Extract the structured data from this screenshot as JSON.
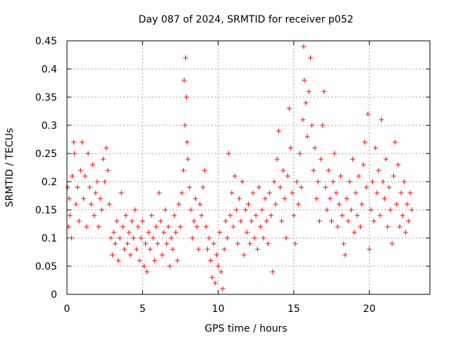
{
  "chart_data": {
    "type": "scatter",
    "title": "Day 087 of 2024, SRMTID for receiver p052",
    "xlabel": "GPS time / hours",
    "ylabel": "SRMTID / TECUs",
    "xlim": [
      0,
      24
    ],
    "ylim": [
      0,
      0.45
    ],
    "x_ticks": [
      0,
      5,
      10,
      15,
      20
    ],
    "x_tick_labels": [
      "0",
      "5",
      "10",
      "15",
      "20"
    ],
    "y_ticks": [
      0,
      0.05,
      0.1,
      0.15,
      0.2,
      0.25,
      0.3,
      0.35,
      0.4,
      0.45
    ],
    "y_tick_labels": [
      "0",
      "0.05",
      "0.1",
      "0.15",
      "0.2",
      "0.25",
      "0.3",
      "0.35",
      "0.4",
      "0.45"
    ],
    "grid": true,
    "marker": "+",
    "color": "#ff0000",
    "series": [
      {
        "name": "SRMTID",
        "points": [
          [
            0.05,
            0.19
          ],
          [
            0.1,
            0.12
          ],
          [
            0.15,
            0.17
          ],
          [
            0.2,
            0.14
          ],
          [
            0.3,
            0.1
          ],
          [
            0.35,
            0.21
          ],
          [
            0.45,
            0.27
          ],
          [
            0.5,
            0.25
          ],
          [
            0.6,
            0.16
          ],
          [
            0.7,
            0.19
          ],
          [
            0.8,
            0.13
          ],
          [
            0.9,
            0.22
          ],
          [
            1.0,
            0.27
          ],
          [
            1.1,
            0.17
          ],
          [
            1.2,
            0.21
          ],
          [
            1.3,
            0.12
          ],
          [
            1.4,
            0.25
          ],
          [
            1.5,
            0.19
          ],
          [
            1.6,
            0.16
          ],
          [
            1.7,
            0.23
          ],
          [
            1.8,
            0.14
          ],
          [
            1.9,
            0.18
          ],
          [
            2.0,
            0.2
          ],
          [
            2.1,
            0.12
          ],
          [
            2.2,
            0.17
          ],
          [
            2.3,
            0.15
          ],
          [
            2.4,
            0.24
          ],
          [
            2.5,
            0.2
          ],
          [
            2.6,
            0.26
          ],
          [
            2.7,
            0.22
          ],
          [
            2.8,
            0.16
          ],
          [
            2.9,
            0.1
          ],
          [
            3.0,
            0.07
          ],
          [
            3.1,
            0.11
          ],
          [
            3.2,
            0.09
          ],
          [
            3.3,
            0.13
          ],
          [
            3.4,
            0.06
          ],
          [
            3.5,
            0.1
          ],
          [
            3.6,
            0.18
          ],
          [
            3.7,
            0.12
          ],
          [
            3.8,
            0.08
          ],
          [
            3.9,
            0.14
          ],
          [
            4.0,
            0.09
          ],
          [
            4.1,
            0.11
          ],
          [
            4.2,
            0.07
          ],
          [
            4.3,
            0.13
          ],
          [
            4.4,
            0.1
          ],
          [
            4.5,
            0.15
          ],
          [
            4.6,
            0.08
          ],
          [
            4.7,
            0.12
          ],
          [
            4.8,
            0.06
          ],
          [
            4.9,
            0.1
          ],
          [
            5.0,
            0.13
          ],
          [
            5.1,
            0.05
          ],
          [
            5.2,
            0.09
          ],
          [
            5.3,
            0.04
          ],
          [
            5.4,
            0.11
          ],
          [
            5.5,
            0.08
          ],
          [
            5.6,
            0.14
          ],
          [
            5.7,
            0.1
          ],
          [
            5.8,
            0.06
          ],
          [
            5.9,
            0.12
          ],
          [
            6.0,
            0.09
          ],
          [
            6.1,
            0.18
          ],
          [
            6.2,
            0.13
          ],
          [
            6.3,
            0.07
          ],
          [
            6.4,
            0.11
          ],
          [
            6.5,
            0.15
          ],
          [
            6.6,
            0.09
          ],
          [
            6.7,
            0.12
          ],
          [
            6.8,
            0.05
          ],
          [
            6.9,
            0.1
          ],
          [
            7.0,
            0.08
          ],
          [
            7.1,
            0.14
          ],
          [
            7.2,
            0.11
          ],
          [
            7.3,
            0.06
          ],
          [
            7.4,
            0.16
          ],
          [
            7.5,
            0.12
          ],
          [
            7.6,
            0.18
          ],
          [
            7.7,
            0.22
          ],
          [
            7.75,
            0.38
          ],
          [
            7.8,
            0.3
          ],
          [
            7.85,
            0.42
          ],
          [
            7.9,
            0.35
          ],
          [
            7.95,
            0.27
          ],
          [
            8.0,
            0.24
          ],
          [
            8.1,
            0.19
          ],
          [
            8.2,
            0.15
          ],
          [
            8.3,
            0.1
          ],
          [
            8.4,
            0.13
          ],
          [
            8.5,
            0.17
          ],
          [
            8.6,
            0.12
          ],
          [
            8.7,
            0.08
          ],
          [
            8.8,
            0.16
          ],
          [
            8.9,
            0.14
          ],
          [
            9.0,
            0.19
          ],
          [
            9.1,
            0.22
          ],
          [
            9.2,
            0.12
          ],
          [
            9.3,
            0.08
          ],
          [
            9.4,
            0.1
          ],
          [
            9.5,
            0.06
          ],
          [
            9.6,
            0.03
          ],
          [
            9.7,
            0.09
          ],
          [
            9.8,
            0.02
          ],
          [
            9.9,
            0.07
          ],
          [
            10.0,
            0.05
          ],
          [
            10.1,
            0.11
          ],
          [
            10.2,
            0.04
          ],
          [
            10.3,
            0.01
          ],
          [
            10.4,
            0.08
          ],
          [
            10.5,
            0.13
          ],
          [
            10.6,
            0.1
          ],
          [
            10.7,
            0.25
          ],
          [
            10.8,
            0.14
          ],
          [
            10.9,
            0.18
          ],
          [
            11.0,
            0.12
          ],
          [
            11.1,
            0.21
          ],
          [
            11.2,
            0.15
          ],
          [
            11.3,
            0.09
          ],
          [
            11.4,
            0.17
          ],
          [
            11.5,
            0.13
          ],
          [
            11.6,
            0.2
          ],
          [
            11.7,
            0.07
          ],
          [
            11.8,
            0.15
          ],
          [
            11.9,
            0.11
          ],
          [
            12.0,
            0.16
          ],
          [
            12.1,
            0.09
          ],
          [
            12.2,
            0.13
          ],
          [
            12.3,
            0.18
          ],
          [
            12.4,
            0.1
          ],
          [
            12.5,
            0.14
          ],
          [
            12.6,
            0.08
          ],
          [
            12.7,
            0.19
          ],
          [
            12.8,
            0.12
          ],
          [
            12.9,
            0.15
          ],
          [
            13.0,
            0.1
          ],
          [
            13.1,
            0.17
          ],
          [
            13.2,
            0.13
          ],
          [
            13.3,
            0.09
          ],
          [
            13.4,
            0.18
          ],
          [
            13.5,
            0.14
          ],
          [
            13.6,
            0.04
          ],
          [
            13.7,
            0.2
          ],
          [
            13.8,
            0.16
          ],
          [
            13.9,
            0.24
          ],
          [
            14.0,
            0.29
          ],
          [
            14.1,
            0.19
          ],
          [
            14.2,
            0.13
          ],
          [
            14.3,
            0.22
          ],
          [
            14.4,
            0.17
          ],
          [
            14.5,
            0.1
          ],
          [
            14.6,
            0.21
          ],
          [
            14.7,
            0.33
          ],
          [
            14.8,
            0.26
          ],
          [
            14.9,
            0.18
          ],
          [
            15.0,
            0.14
          ],
          [
            15.1,
            0.09
          ],
          [
            15.2,
            0.2
          ],
          [
            15.3,
            0.16
          ],
          [
            15.4,
            0.25
          ],
          [
            15.5,
            0.19
          ],
          [
            15.6,
            0.31
          ],
          [
            15.65,
            0.44
          ],
          [
            15.7,
            0.38
          ],
          [
            15.8,
            0.34
          ],
          [
            15.9,
            0.28
          ],
          [
            16.0,
            0.36
          ],
          [
            16.1,
            0.42
          ],
          [
            16.2,
            0.3
          ],
          [
            16.3,
            0.22
          ],
          [
            16.4,
            0.26
          ],
          [
            16.5,
            0.17
          ],
          [
            16.6,
            0.2
          ],
          [
            16.7,
            0.13
          ],
          [
            16.8,
            0.24
          ],
          [
            16.9,
            0.3
          ],
          [
            17.0,
            0.36
          ],
          [
            17.1,
            0.19
          ],
          [
            17.2,
            0.15
          ],
          [
            17.3,
            0.22
          ],
          [
            17.4,
            0.17
          ],
          [
            17.5,
            0.13
          ],
          [
            17.6,
            0.2
          ],
          [
            17.7,
            0.25
          ],
          [
            17.8,
            0.18
          ],
          [
            17.9,
            0.12
          ],
          [
            18.0,
            0.16
          ],
          [
            18.1,
            0.21
          ],
          [
            18.2,
            0.14
          ],
          [
            18.3,
            0.09
          ],
          [
            18.4,
            0.07
          ],
          [
            18.5,
            0.17
          ],
          [
            18.6,
            0.13
          ],
          [
            18.7,
            0.2
          ],
          [
            18.8,
            0.15
          ],
          [
            18.9,
            0.24
          ],
          [
            19.0,
            0.11
          ],
          [
            19.1,
            0.18
          ],
          [
            19.2,
            0.14
          ],
          [
            19.3,
            0.21
          ],
          [
            19.4,
            0.12
          ],
          [
            19.5,
            0.16
          ],
          [
            19.6,
            0.23
          ],
          [
            19.7,
            0.27
          ],
          [
            19.8,
            0.19
          ],
          [
            19.9,
            0.32
          ],
          [
            20.0,
            0.08
          ],
          [
            20.1,
            0.15
          ],
          [
            20.2,
            0.2
          ],
          [
            20.3,
            0.13
          ],
          [
            20.4,
            0.26
          ],
          [
            20.5,
            0.18
          ],
          [
            20.6,
            0.22
          ],
          [
            20.7,
            0.14
          ],
          [
            20.8,
            0.31
          ],
          [
            20.9,
            0.2
          ],
          [
            21.0,
            0.17
          ],
          [
            21.1,
            0.24
          ],
          [
            21.2,
            0.12
          ],
          [
            21.3,
            0.19
          ],
          [
            21.4,
            0.15
          ],
          [
            21.5,
            0.09
          ],
          [
            21.6,
            0.21
          ],
          [
            21.7,
            0.27
          ],
          [
            21.8,
            0.16
          ],
          [
            21.9,
            0.23
          ],
          [
            22.0,
            0.12
          ],
          [
            22.1,
            0.18
          ],
          [
            22.2,
            0.14
          ],
          [
            22.3,
            0.2
          ],
          [
            22.4,
            0.11
          ],
          [
            22.5,
            0.16
          ],
          [
            22.6,
            0.13
          ],
          [
            22.7,
            0.18
          ],
          [
            22.8,
            0.15
          ]
        ]
      }
    ]
  }
}
